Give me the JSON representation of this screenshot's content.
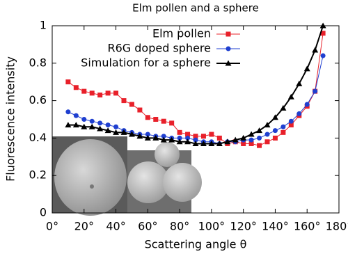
{
  "chart_data": {
    "type": "line",
    "title": "Elm pollen and a sphere",
    "xlabel": "Scattering angle  θ",
    "ylabel": "Fluorescence intensity",
    "xlim": [
      0,
      180
    ],
    "ylim": [
      0,
      1
    ],
    "xticks": [
      {
        "value": 0,
        "label": "0°"
      },
      {
        "value": 20,
        "label": "20°"
      },
      {
        "value": 40,
        "label": "40°"
      },
      {
        "value": 60,
        "label": "60°"
      },
      {
        "value": 80,
        "label": "80°"
      },
      {
        "value": 100,
        "label": "100°"
      },
      {
        "value": 120,
        "label": "120°"
      },
      {
        "value": 140,
        "label": "140°"
      },
      {
        "value": 160,
        "label": "160°"
      },
      {
        "value": 180,
        "label": "180°"
      }
    ],
    "yticks": [
      0,
      0.2,
      0.4,
      0.6,
      0.8,
      1
    ],
    "legend": "top-left",
    "x": [
      10,
      15,
      20,
      25,
      30,
      35,
      40,
      45,
      50,
      55,
      60,
      65,
      70,
      75,
      80,
      85,
      90,
      95,
      100,
      105,
      110,
      115,
      120,
      125,
      130,
      135,
      140,
      145,
      150,
      155,
      160,
      165,
      170
    ],
    "series": [
      {
        "name": "Elm pollen",
        "color": "#e8202a",
        "marker": "square",
        "line_width": 1,
        "values": [
          0.7,
          0.67,
          0.65,
          0.64,
          0.63,
          0.64,
          0.64,
          0.6,
          0.58,
          0.55,
          0.51,
          0.5,
          0.49,
          0.48,
          0.43,
          0.42,
          0.41,
          0.41,
          0.42,
          0.4,
          0.37,
          0.38,
          0.37,
          0.37,
          0.36,
          0.38,
          0.4,
          0.43,
          0.47,
          0.52,
          0.57,
          0.65,
          0.96
        ]
      },
      {
        "name": "R6G doped sphere",
        "color": "#1f3fd0",
        "marker": "circle",
        "line_width": 1,
        "values": [
          0.54,
          0.52,
          0.5,
          0.49,
          0.48,
          0.47,
          0.46,
          0.44,
          0.43,
          0.42,
          0.42,
          0.41,
          0.41,
          0.4,
          0.4,
          0.4,
          0.39,
          0.38,
          0.38,
          0.37,
          0.38,
          0.38,
          0.39,
          0.39,
          0.4,
          0.42,
          0.44,
          0.46,
          0.49,
          0.53,
          0.58,
          0.65,
          0.84
        ]
      },
      {
        "name": "Simulation for a sphere",
        "color": "#000000",
        "marker": "triangle",
        "line_width": 2,
        "values": [
          0.47,
          0.47,
          0.46,
          0.46,
          0.45,
          0.44,
          0.43,
          0.43,
          0.42,
          0.41,
          0.4,
          0.4,
          0.39,
          0.39,
          0.38,
          0.38,
          0.37,
          0.37,
          0.37,
          0.37,
          0.38,
          0.39,
          0.4,
          0.42,
          0.44,
          0.47,
          0.51,
          0.56,
          0.62,
          0.69,
          0.77,
          0.87,
          1.0
        ]
      }
    ]
  }
}
